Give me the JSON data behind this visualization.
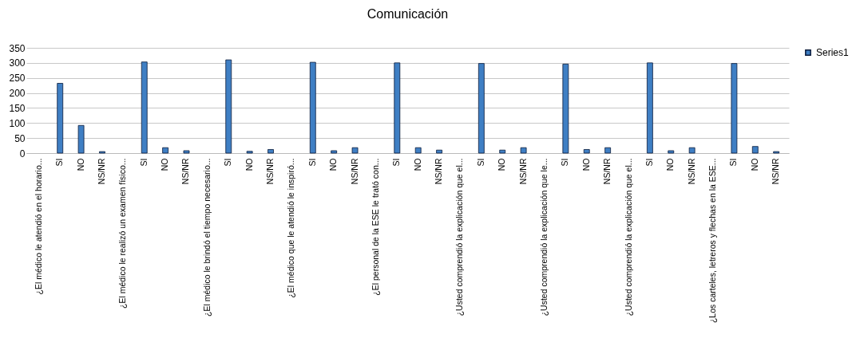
{
  "chart_data": {
    "type": "bar",
    "title": "Comunicación",
    "categories": [
      "¿El médico le atendió en el horario...",
      "SI",
      "NO",
      "NS/NR",
      "¿El médico le realizó un examen físico...",
      "SI",
      "NO",
      "NS/NR",
      "¿El médico le brindó el tiempo necesario...",
      "SI",
      "NO",
      "NS/NR",
      "¿El médico que le atendió le inspiró...",
      "SI",
      "NO",
      "NS/NR",
      "¿El personal de la ESE le trató con...",
      "SI",
      "NO",
      "NS/NR",
      "¿Usted comprendió la explicación que el...",
      "SI",
      "NO",
      "NS/NR",
      "¿Usted comprendió la explicación que le...",
      "SI",
      "NO",
      "NS/NR",
      "¿Usted comprendió la explicación que el...",
      "SI",
      "NO",
      "NS/NR",
      "¿Los carteles, letreros y flechas en la ESE...",
      "SI",
      "NO",
      "NS/NR"
    ],
    "series": [
      {
        "name": "Series1",
        "color": "#3f7fc4",
        "values": [
          null,
          232,
          92,
          5,
          null,
          303,
          18,
          8,
          null,
          310,
          6,
          12,
          null,
          302,
          8,
          18,
          null,
          300,
          18,
          10,
          null,
          298,
          10,
          18,
          null,
          296,
          12,
          18,
          null,
          300,
          8,
          18,
          null,
          298,
          22,
          5
        ]
      }
    ],
    "ylim": [
      0,
      350
    ],
    "yticks": [
      0,
      50,
      100,
      150,
      200,
      250,
      300,
      350
    ],
    "grid": "y",
    "legend": "right"
  }
}
